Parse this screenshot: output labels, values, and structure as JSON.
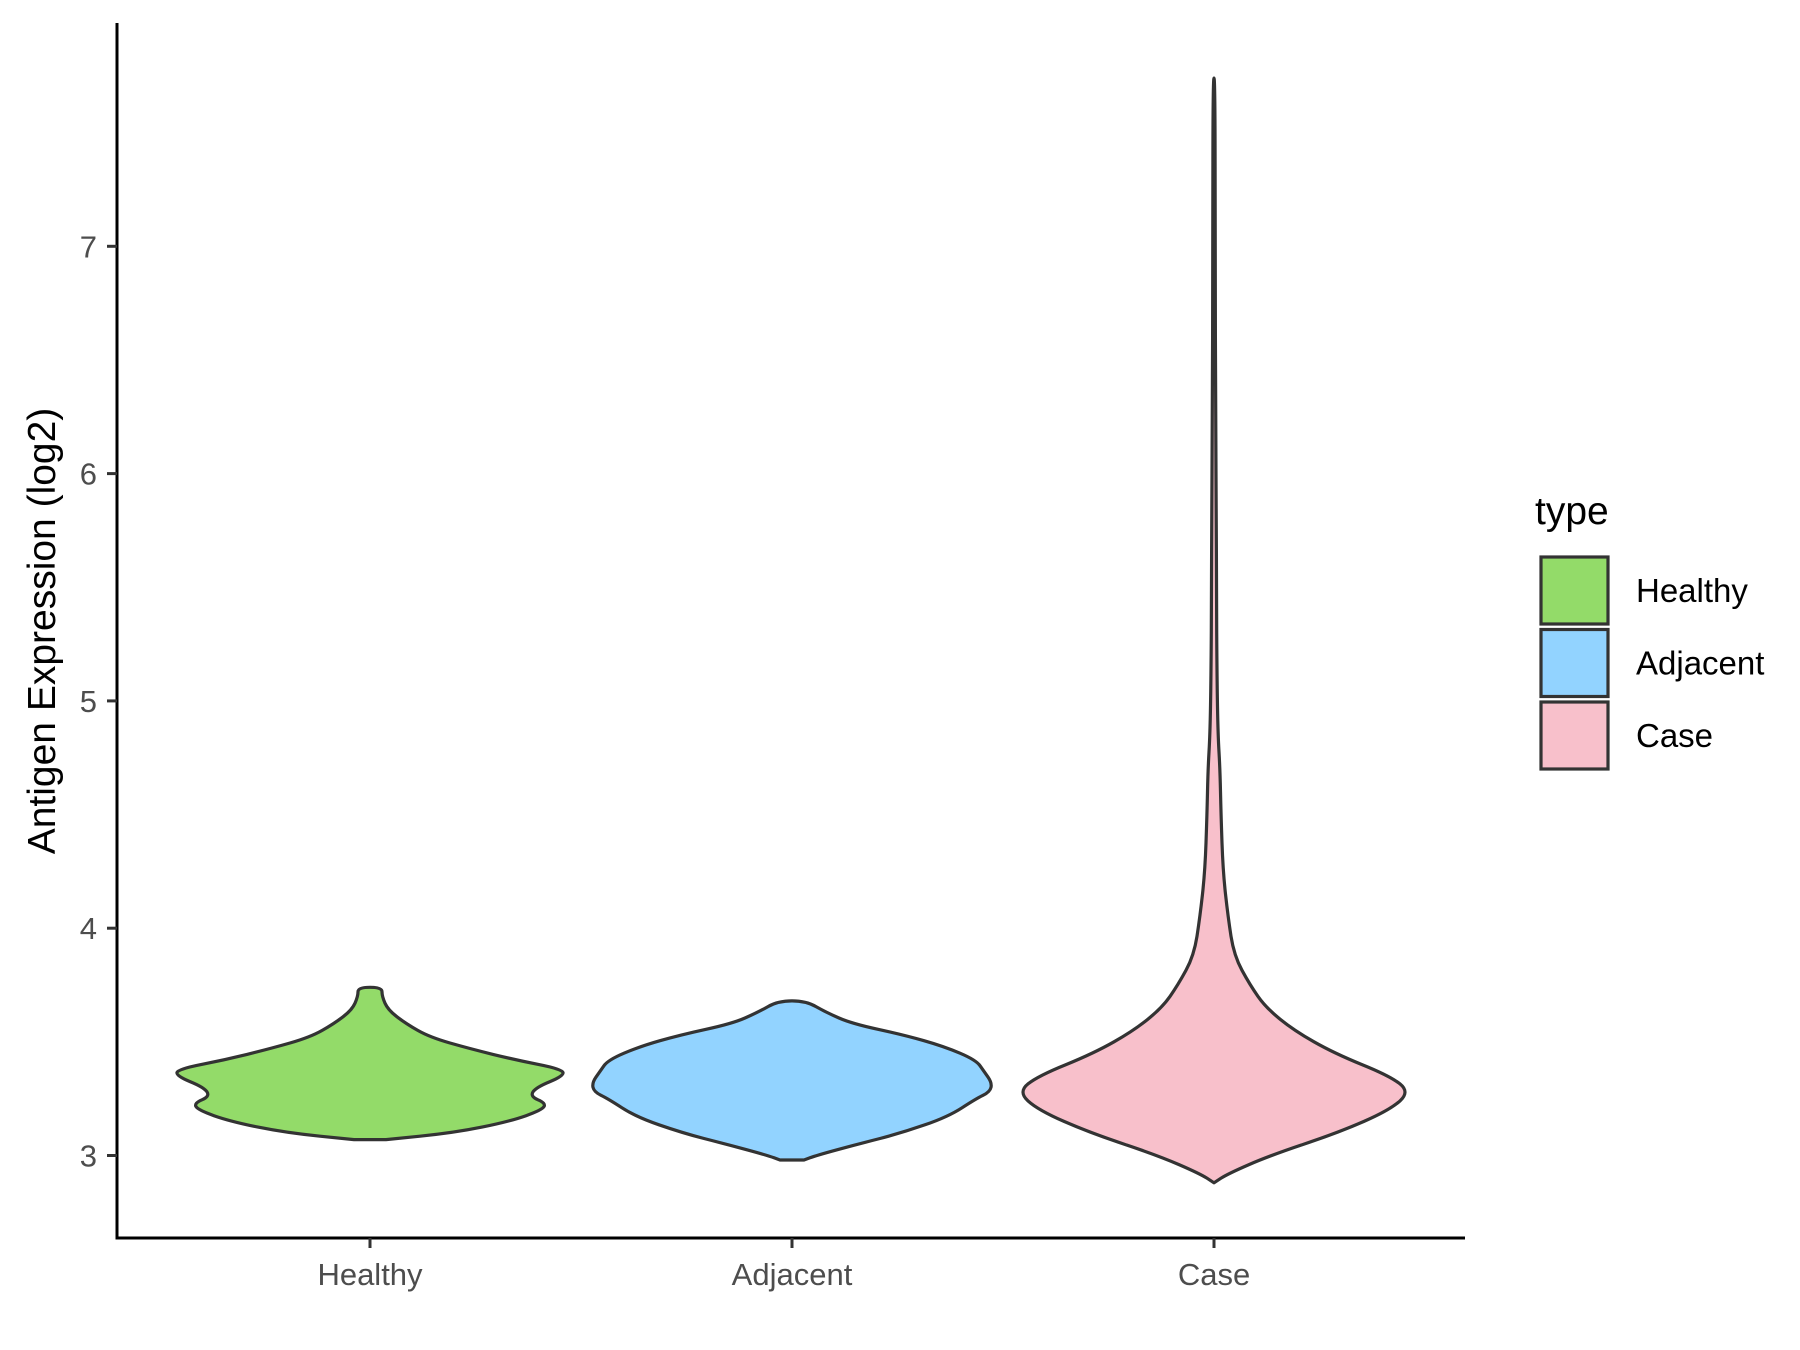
{
  "chart_data": {
    "type": "violin",
    "title": "",
    "xlabel": "",
    "ylabel": "Antigen Expression (log2)",
    "ylim": [
      2.65,
      7.9
    ],
    "yticks": [
      3,
      4,
      5,
      6,
      7
    ],
    "categories": [
      "Healthy",
      "Adjacent",
      "Case"
    ],
    "grid": false,
    "legend": {
      "title": "type",
      "position": "right",
      "entries": [
        "Healthy",
        "Adjacent",
        "Case"
      ]
    },
    "colors": {
      "Healthy": "#93DB69",
      "Adjacent": "#92D3FF",
      "Case": "#F8C0CB",
      "outline": "#333333"
    },
    "series": [
      {
        "name": "Healthy",
        "y_min": 3.07,
        "y_max": 3.74,
        "density_profile": [
          [
            3.07,
            0.08
          ],
          [
            3.1,
            0.42
          ],
          [
            3.15,
            0.7
          ],
          [
            3.2,
            0.86
          ],
          [
            3.23,
            0.88
          ],
          [
            3.26,
            0.8
          ],
          [
            3.3,
            0.83
          ],
          [
            3.35,
            0.97
          ],
          [
            3.38,
            0.96
          ],
          [
            3.42,
            0.73
          ],
          [
            3.47,
            0.5
          ],
          [
            3.52,
            0.3
          ],
          [
            3.58,
            0.18
          ],
          [
            3.64,
            0.09
          ],
          [
            3.7,
            0.06
          ],
          [
            3.74,
            0.06
          ]
        ]
      },
      {
        "name": "Adjacent",
        "y_min": 2.98,
        "y_max": 3.68,
        "density_profile": [
          [
            2.98,
            0.06
          ],
          [
            3.0,
            0.12
          ],
          [
            3.05,
            0.33
          ],
          [
            3.1,
            0.55
          ],
          [
            3.17,
            0.78
          ],
          [
            3.25,
            0.92
          ],
          [
            3.28,
            0.99
          ],
          [
            3.32,
            1.0
          ],
          [
            3.37,
            0.96
          ],
          [
            3.42,
            0.92
          ],
          [
            3.48,
            0.76
          ],
          [
            3.53,
            0.56
          ],
          [
            3.58,
            0.3
          ],
          [
            3.63,
            0.17
          ],
          [
            3.68,
            0.07
          ]
        ]
      },
      {
        "name": "Case",
        "y_min": 2.88,
        "y_max": 7.74,
        "density_profile": [
          [
            2.88,
            0.0
          ],
          [
            2.92,
            0.07
          ],
          [
            3.0,
            0.28
          ],
          [
            3.1,
            0.62
          ],
          [
            3.2,
            0.88
          ],
          [
            3.28,
            0.98
          ],
          [
            3.35,
            0.88
          ],
          [
            3.45,
            0.6
          ],
          [
            3.55,
            0.4
          ],
          [
            3.65,
            0.26
          ],
          [
            3.75,
            0.18
          ],
          [
            3.88,
            0.1
          ],
          [
            4.05,
            0.07
          ],
          [
            4.25,
            0.045
          ],
          [
            4.5,
            0.035
          ],
          [
            4.7,
            0.03
          ],
          [
            4.85,
            0.02
          ],
          [
            5.1,
            0.015
          ],
          [
            5.5,
            0.012
          ],
          [
            5.8,
            0.012
          ],
          [
            6.2,
            0.008
          ],
          [
            7.0,
            0.006
          ],
          [
            7.74,
            0.005
          ]
        ]
      }
    ]
  }
}
